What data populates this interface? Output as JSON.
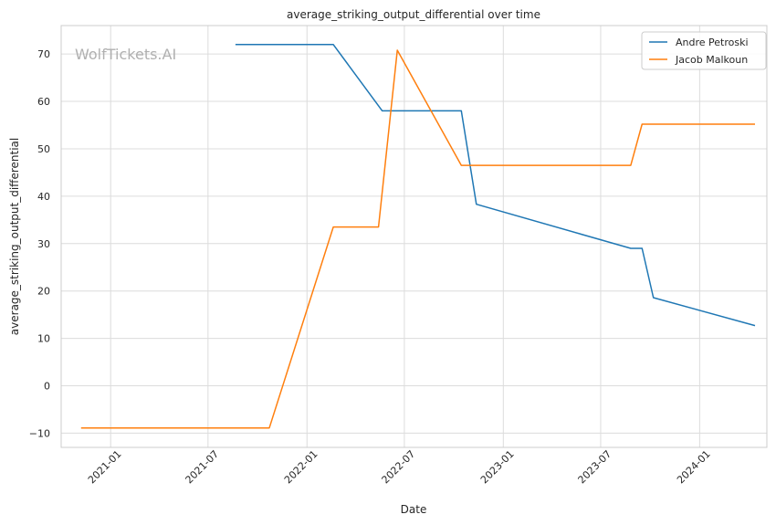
{
  "chart_data": {
    "type": "line",
    "title": "average_striking_output_differential over time",
    "xlabel": "Date",
    "ylabel": "average_striking_output_differential",
    "watermark": "WolfTickets.AI",
    "xlim": [
      "2020-10-01",
      "2024-05-05"
    ],
    "ylim": [
      -13,
      76
    ],
    "x_ticks": [
      "2021-01-01",
      "2021-07-01",
      "2022-01-01",
      "2022-07-01",
      "2023-01-01",
      "2023-07-01",
      "2024-01-01"
    ],
    "x_tick_labels": [
      "2021-01",
      "2021-07",
      "2022-01",
      "2022-07",
      "2023-01",
      "2023-07",
      "2024-01"
    ],
    "y_ticks": [
      -10,
      0,
      10,
      20,
      30,
      40,
      50,
      60,
      70
    ],
    "y_tick_labels": [
      "−10",
      "0",
      "10",
      "20",
      "30",
      "40",
      "50",
      "60",
      "70"
    ],
    "grid": true,
    "legend_position": "top-right",
    "series": [
      {
        "name": "Andre Petroski",
        "color": "#1f77b4",
        "points": [
          {
            "x": "2021-08-21",
            "y": 72
          },
          {
            "x": "2022-02-19",
            "y": 72
          },
          {
            "x": "2022-05-21",
            "y": 58
          },
          {
            "x": "2022-10-15",
            "y": 58
          },
          {
            "x": "2022-11-12",
            "y": 38.3
          },
          {
            "x": "2023-08-26",
            "y": 29
          },
          {
            "x": "2023-09-16",
            "y": 29
          },
          {
            "x": "2023-10-07",
            "y": 18.6
          },
          {
            "x": "2024-04-13",
            "y": 12.7
          }
        ]
      },
      {
        "name": "Jacob Malkoun",
        "color": "#ff7f0e",
        "points": [
          {
            "x": "2020-11-07",
            "y": -8.9
          },
          {
            "x": "2021-10-23",
            "y": -8.9
          },
          {
            "x": "2022-02-19",
            "y": 33.5
          },
          {
            "x": "2022-05-14",
            "y": 33.5
          },
          {
            "x": "2022-06-18",
            "y": 70.8
          },
          {
            "x": "2022-10-15",
            "y": 46.5
          },
          {
            "x": "2023-08-26",
            "y": 46.5
          },
          {
            "x": "2023-09-16",
            "y": 55.2
          },
          {
            "x": "2024-04-13",
            "y": 55.2
          }
        ]
      }
    ]
  }
}
